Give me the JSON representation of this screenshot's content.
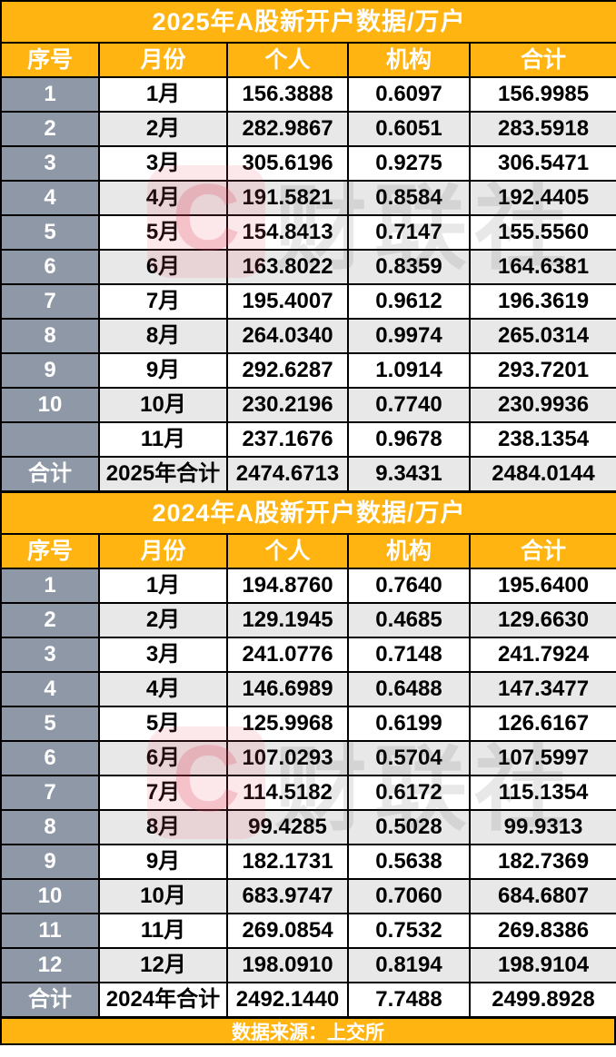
{
  "page": {
    "footer_source": "数据来源：上交所"
  },
  "watermark": {
    "letter": "C",
    "brand": "财联社"
  },
  "colors": {
    "accent_orange": "#FFB412",
    "index_column_slate": "#8E98A6",
    "stripe_gray": "#E8E8E8",
    "border_black": "#000000",
    "header_text_white": "#FFFFFF",
    "watermark_pink": "#E85F70"
  },
  "chart_data": [
    {
      "type": "table",
      "title": "2025年A股新开户数据/万户",
      "columns": [
        "序号",
        "月份",
        "个人",
        "机构",
        "合计"
      ],
      "rows": [
        [
          "1",
          "1月",
          "156.3888",
          "0.6097",
          "156.9985"
        ],
        [
          "2",
          "2月",
          "282.9867",
          "0.6051",
          "283.5918"
        ],
        [
          "3",
          "3月",
          "305.6196",
          "0.9275",
          "306.5471"
        ],
        [
          "4",
          "4月",
          "191.5821",
          "0.8584",
          "192.4405"
        ],
        [
          "5",
          "5月",
          "154.8413",
          "0.7147",
          "155.5560"
        ],
        [
          "6",
          "6月",
          "163.8022",
          "0.8359",
          "164.6381"
        ],
        [
          "7",
          "7月",
          "195.4007",
          "0.9612",
          "196.3619"
        ],
        [
          "8",
          "8月",
          "264.0340",
          "0.9974",
          "265.0314"
        ],
        [
          "9",
          "9月",
          "292.6287",
          "1.0914",
          "293.7201"
        ],
        [
          "10",
          "10月",
          "230.2196",
          "0.7740",
          "230.9936"
        ],
        [
          "",
          "11月",
          "237.1676",
          "0.9678",
          "238.1354"
        ],
        [
          "合计",
          "2025年合计",
          "2474.6713",
          "9.3431",
          "2484.0144"
        ]
      ]
    },
    {
      "type": "table",
      "title": "2024年A股新开户数据/万户",
      "columns": [
        "序号",
        "月份",
        "个人",
        "机构",
        "合计"
      ],
      "rows": [
        [
          "1",
          "1月",
          "194.8760",
          "0.7640",
          "195.6400"
        ],
        [
          "2",
          "2月",
          "129.1945",
          "0.4685",
          "129.6630"
        ],
        [
          "3",
          "3月",
          "241.0776",
          "0.7148",
          "241.7924"
        ],
        [
          "4",
          "4月",
          "146.6989",
          "0.6488",
          "147.3477"
        ],
        [
          "5",
          "5月",
          "125.9968",
          "0.6199",
          "126.6167"
        ],
        [
          "6",
          "6月",
          "107.0293",
          "0.5704",
          "107.5997"
        ],
        [
          "7",
          "7月",
          "114.5182",
          "0.6172",
          "115.1354"
        ],
        [
          "8",
          "8月",
          "99.4285",
          "0.5028",
          "99.9313"
        ],
        [
          "9",
          "9月",
          "182.1731",
          "0.5638",
          "182.7369"
        ],
        [
          "10",
          "10月",
          "683.9747",
          "0.7060",
          "684.6807"
        ],
        [
          "11",
          "11月",
          "269.0854",
          "0.7532",
          "269.8386"
        ],
        [
          "12",
          "12月",
          "198.0910",
          "0.8194",
          "198.9104"
        ],
        [
          "合计",
          "2024年合计",
          "2492.1440",
          "7.7488",
          "2499.8928"
        ]
      ]
    }
  ]
}
